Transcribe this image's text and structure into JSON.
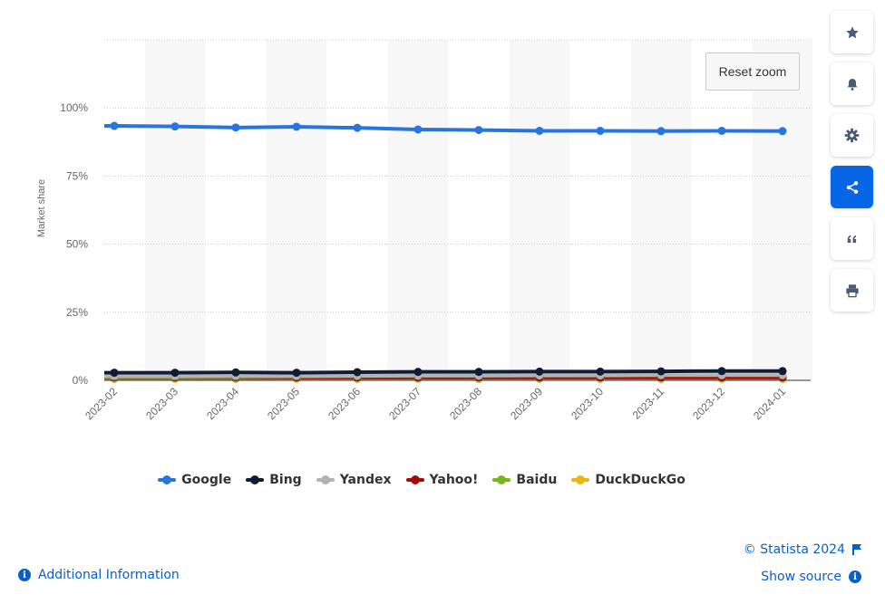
{
  "chart_data": {
    "type": "line",
    "ylabel": "Market share",
    "ylim": [
      0,
      125
    ],
    "yticks": [
      {
        "value": 0,
        "label": "0%"
      },
      {
        "value": 25,
        "label": "25%"
      },
      {
        "value": 50,
        "label": "50%"
      },
      {
        "value": 75,
        "label": "75%"
      },
      {
        "value": 100,
        "label": "100%"
      }
    ],
    "x": [
      "2023-02",
      "2023-03",
      "2023-04",
      "2023-05",
      "2023-06",
      "2023-07",
      "2023-08",
      "2023-09",
      "2023-10",
      "2023-11",
      "2023-12",
      "2024-01"
    ],
    "grid": "horizontal dotted, alternating vertical bands",
    "legend_position": "bottom-center",
    "series": [
      {
        "name": "Google",
        "color": "#2876dd",
        "values": [
          93.4,
          93.2,
          92.8,
          93.1,
          92.7,
          92.1,
          91.9,
          91.6,
          91.6,
          91.5,
          91.6,
          91.5
        ]
      },
      {
        "name": "Bing",
        "color": "#0f1c35",
        "values": [
          2.8,
          2.8,
          2.9,
          2.8,
          3.0,
          3.1,
          3.1,
          3.2,
          3.2,
          3.3,
          3.4,
          3.4
        ]
      },
      {
        "name": "Yandex",
        "color": "#b3b3b3",
        "values": [
          1.4,
          1.4,
          1.5,
          1.5,
          1.6,
          1.7,
          1.7,
          1.8,
          1.8,
          1.9,
          1.9,
          1.9
        ]
      },
      {
        "name": "Yahoo!",
        "color": "#a30b0b",
        "values": [
          1.2,
          1.2,
          1.2,
          1.1,
          1.1,
          1.1,
          1.1,
          1.1,
          1.1,
          1.1,
          1.1,
          1.1
        ]
      },
      {
        "name": "Baidu",
        "color": "#7ab41d",
        "values": [
          0.8,
          0.8,
          0.8,
          0.9,
          0.9,
          0.9,
          0.9,
          0.9,
          0.9,
          0.9,
          0.9,
          0.9
        ]
      },
      {
        "name": "DuckDuckGo",
        "color": "#f0b312",
        "values": [
          0.5,
          0.5,
          0.5,
          0.5,
          0.5,
          0.5,
          0.5,
          0.5,
          0.5,
          0.5,
          0.5,
          0.5
        ]
      }
    ]
  },
  "ui": {
    "reset_zoom_label": "Reset zoom",
    "additional_info_label": "Additional Information",
    "copyright_label": "© Statista 2024",
    "show_source_label": "Show source",
    "info_glyph": "i",
    "toolbar": [
      {
        "name": "favorite-star-icon",
        "glyph": "★"
      },
      {
        "name": "notification-bell-icon",
        "glyph": "bell"
      },
      {
        "name": "settings-gear-icon",
        "glyph": "gear"
      },
      {
        "name": "share-icon",
        "glyph": "share"
      },
      {
        "name": "cite-quote-icon",
        "glyph": "quote"
      },
      {
        "name": "print-icon",
        "glyph": "print"
      }
    ]
  }
}
